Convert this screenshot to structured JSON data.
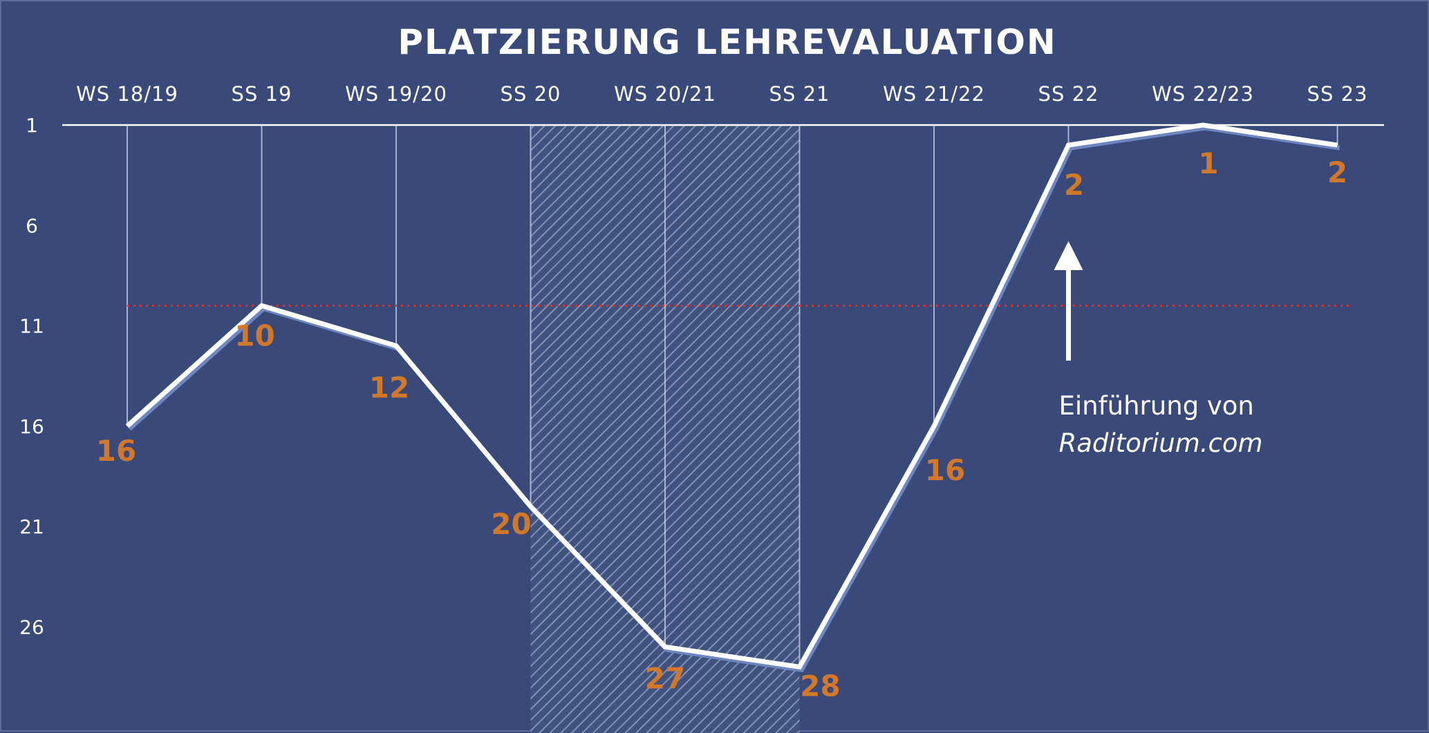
{
  "chart_data": {
    "type": "line",
    "title": "PLATZIERUNG LEHREVALUATION",
    "categories": [
      "WS 18/19",
      "SS 19",
      "WS 19/20",
      "SS 20",
      "WS 20/21",
      "SS 21",
      "WS 21/22",
      "SS 22",
      "WS 22/23",
      "SS 23"
    ],
    "series": [
      {
        "values": [
          16,
          10,
          12,
          20,
          27,
          28,
          16,
          2,
          1,
          2
        ]
      }
    ],
    "y_ticks": [
      "1",
      "6",
      "11",
      "16",
      "21",
      "26"
    ],
    "ylim": [
      1,
      30
    ],
    "y_inverted": true,
    "x_axis_position": "top",
    "reference_line": {
      "value": 10,
      "style": "dotted",
      "color": "#d9332a"
    },
    "shaded_region": {
      "from": "SS 20",
      "to": "SS 21",
      "pattern": "diagonal-hatch"
    },
    "annotation": {
      "at": "SS 22",
      "line1": "Einführung von",
      "line2": "Raditorium.com"
    },
    "colors": {
      "background": "#38497a",
      "line": "#ffffff",
      "data_label": "#d2782a",
      "reference": "#d9332a"
    }
  }
}
